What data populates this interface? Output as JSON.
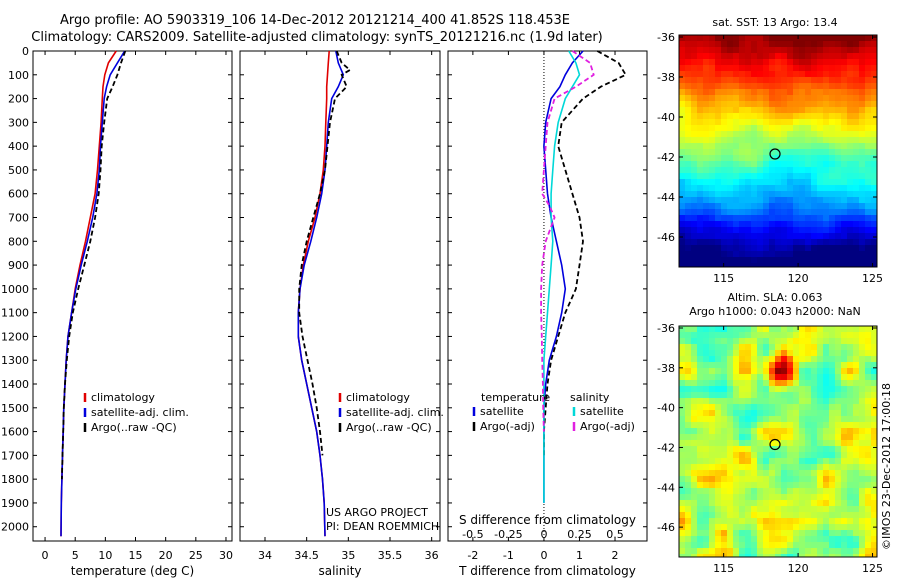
{
  "title_line1": "Argo profile: AO 5903319_106 14-Dec-2012 20121214_400 41.852S 118.453E",
  "title_line2": "Climatology: CARS2009. Satellite-adjusted climatology: synTS_20121216.nc (1.9d later)",
  "colors": {
    "red": "#e00000",
    "blue": "#0000dd",
    "black": "#000000",
    "cyan": "#00d8d8",
    "magenta": "#e020e0"
  },
  "chart_data": [
    {
      "type": "line",
      "xlabel": "temperature (deg C)",
      "ylabel": "",
      "xlim": [
        -2,
        31
      ],
      "ylim": [
        0,
        2060
      ],
      "y_inverted": true,
      "xticks": [
        0,
        5,
        10,
        15,
        20,
        25,
        30
      ],
      "yticks": [
        0,
        100,
        200,
        300,
        400,
        500,
        600,
        700,
        800,
        900,
        1000,
        1100,
        1200,
        1300,
        1400,
        1500,
        1600,
        1700,
        1800,
        1900,
        2000
      ],
      "legend": {
        "position": "lower-center",
        "entries": [
          "climatology",
          "satellite-adj. clim.",
          "Argo(..raw -QC)"
        ]
      },
      "series": [
        {
          "name": "climatology",
          "color": "red",
          "dash": "",
          "x": [
            11.8,
            10.5,
            9.9,
            9.6,
            9.5,
            9.3,
            9.0,
            8.7,
            8.3,
            7.5,
            6.7,
            5.8,
            5.0,
            4.4,
            3.8,
            3.5,
            3.3,
            3.1,
            3.0,
            2.9,
            2.8,
            2.7,
            2.65
          ],
          "y": [
            0,
            50,
            100,
            150,
            200,
            300,
            400,
            500,
            600,
            700,
            800,
            900,
            1000,
            1100,
            1200,
            1300,
            1400,
            1500,
            1600,
            1700,
            1800,
            1900,
            2040
          ]
        },
        {
          "name": "satellite-adj. clim.",
          "color": "blue",
          "dash": "",
          "x": [
            13.2,
            12.0,
            10.8,
            10.2,
            9.8,
            9.5,
            9.2,
            9.0,
            8.6,
            7.9,
            7.0,
            6.0,
            5.1,
            4.4,
            3.8,
            3.5,
            3.3,
            3.1,
            3.0,
            2.9,
            2.8,
            2.7,
            2.65
          ],
          "y": [
            0,
            50,
            100,
            150,
            200,
            300,
            400,
            500,
            600,
            700,
            800,
            900,
            1000,
            1100,
            1200,
            1300,
            1400,
            1500,
            1600,
            1700,
            1800,
            1900,
            2040
          ]
        },
        {
          "name": "Argo(..raw -QC)",
          "color": "black",
          "dash": "5,3",
          "x": [
            13.3,
            12.6,
            12.0,
            11.2,
            10.3,
            9.8,
            9.4,
            9.2,
            8.9,
            8.3,
            7.5,
            6.5,
            5.5,
            4.6,
            4.0,
            3.6,
            3.3,
            3.1,
            3.0,
            2.9,
            2.8
          ],
          "y": [
            0,
            50,
            100,
            150,
            200,
            300,
            400,
            500,
            600,
            700,
            800,
            900,
            1000,
            1100,
            1200,
            1300,
            1400,
            1500,
            1600,
            1700,
            1800
          ]
        }
      ]
    },
    {
      "type": "line",
      "xlabel": "salinity",
      "xlim": [
        33.7,
        36.1
      ],
      "ylim": [
        0,
        2060
      ],
      "y_inverted": true,
      "xticks": [
        34,
        34.5,
        35,
        35.5,
        36
      ],
      "legend": {
        "position": "lower-right",
        "entries": [
          "climatology",
          "satellite-adj. clim.",
          "Argo(..raw -QC)"
        ]
      },
      "annotation": [
        "US ARGO PROJECT",
        "PI: DEAN ROEMMICH"
      ],
      "series": [
        {
          "name": "climatology",
          "color": "red",
          "dash": "",
          "x": [
            34.77,
            34.76,
            34.75,
            34.74,
            34.74,
            34.73,
            34.72,
            34.7,
            34.66,
            34.6,
            34.52,
            34.46,
            34.42,
            34.4,
            34.4,
            34.44,
            34.5,
            34.56,
            34.62,
            34.66,
            34.69,
            34.71,
            34.72
          ],
          "y": [
            0,
            50,
            100,
            150,
            200,
            300,
            400,
            500,
            600,
            700,
            800,
            900,
            1000,
            1100,
            1200,
            1300,
            1400,
            1500,
            1600,
            1700,
            1800,
            1900,
            2040
          ]
        },
        {
          "name": "satellite-adj. clim.",
          "color": "blue",
          "dash": "",
          "x": [
            34.85,
            34.88,
            34.94,
            34.88,
            34.8,
            34.76,
            34.74,
            34.72,
            34.68,
            34.62,
            34.55,
            34.47,
            34.42,
            34.4,
            34.4,
            34.44,
            34.5,
            34.56,
            34.62,
            34.66,
            34.69,
            34.71,
            34.72
          ],
          "y": [
            0,
            50,
            100,
            150,
            200,
            300,
            400,
            500,
            600,
            700,
            800,
            900,
            1000,
            1100,
            1200,
            1300,
            1400,
            1500,
            1600,
            1700,
            1800,
            1900,
            2040
          ]
        },
        {
          "name": "Argo(..raw -QC)",
          "color": "black",
          "dash": "5,3",
          "x": [
            34.86,
            34.92,
            35.02,
            34.92,
            34.98,
            34.84,
            34.78,
            34.75,
            34.72,
            34.66,
            34.58,
            34.5,
            34.44,
            34.41,
            34.41,
            34.45,
            34.51,
            34.57,
            34.62,
            34.66,
            34.69
          ],
          "y": [
            0,
            50,
            80,
            100,
            150,
            200,
            300,
            400,
            500,
            600,
            700,
            800,
            900,
            1000,
            1100,
            1200,
            1300,
            1400,
            1500,
            1600,
            1700
          ]
        }
      ]
    },
    {
      "type": "line",
      "xlabel": "T difference from climatology",
      "xlabel2": "S difference from climatology",
      "xlim": [
        -2.7,
        2.9
      ],
      "ylim": [
        0,
        2060
      ],
      "y_inverted": true,
      "xticks": [
        -2,
        -1,
        0,
        1,
        2
      ],
      "s_xticks": [
        "-0.5",
        "-0.25",
        "0",
        "0.25",
        "0.5"
      ],
      "legend": {
        "position": "lower-center",
        "temp_title": "temperature",
        "sal_title": "salinity",
        "entries": [
          "satellite",
          "Argo(-adj)",
          "satellite",
          "Argo(-adj)"
        ]
      },
      "series": [
        {
          "name": "satellite",
          "color": "blue",
          "dash": "",
          "x": [
            1.1,
            0.8,
            0.6,
            0.45,
            0.2,
            0.05,
            0,
            0.05,
            0.1,
            0.2,
            0.35,
            0.5,
            0.6,
            0.5,
            0.35,
            0.15,
            0.05,
            0,
            0,
            0,
            0,
            0
          ],
          "y": [
            0,
            50,
            100,
            150,
            200,
            300,
            400,
            500,
            600,
            700,
            800,
            900,
            1000,
            1100,
            1200,
            1300,
            1400,
            1500,
            1600,
            1700,
            1800,
            1900
          ]
        },
        {
          "name": "Argo(-adj)",
          "color": "black",
          "dash": "5,3",
          "x": [
            1.5,
            2.1,
            2.3,
            1.6,
            1.1,
            0.5,
            0.4,
            0.6,
            0.8,
            1.0,
            1.1,
            1.0,
            0.9,
            0.6,
            0.4,
            0.2,
            0.1,
            0.05,
            0,
            0
          ],
          "y": [
            0,
            50,
            100,
            150,
            200,
            300,
            400,
            500,
            600,
            700,
            800,
            900,
            1000,
            1100,
            1200,
            1300,
            1400,
            1500,
            1600,
            1700
          ]
        },
        {
          "name": "satellite",
          "color": "cyan",
          "dash": "",
          "x": [
            0.7,
            0.9,
            1.0,
            0.8,
            0.6,
            0.4,
            0.3,
            0.25,
            0.2,
            0.2,
            0.25,
            0.2,
            0.15,
            0.1,
            0.05,
            0,
            0,
            0,
            0,
            0,
            0,
            0
          ],
          "y": [
            0,
            50,
            100,
            150,
            200,
            300,
            400,
            500,
            600,
            700,
            800,
            900,
            1000,
            1100,
            1200,
            1300,
            1400,
            1500,
            1600,
            1700,
            1800,
            1900
          ]
        },
        {
          "name": "Argo(-adj)",
          "color": "magenta",
          "dash": "5,3",
          "x": [
            0.8,
            1.3,
            1.4,
            0.9,
            0.3,
            0.1,
            0.05,
            0,
            -0.05,
            0.15,
            0.3,
            0.05,
            -0.05,
            -0.08,
            -0.08,
            -0.06,
            -0.05,
            -0.03,
            -0.02,
            0
          ],
          "y": [
            0,
            50,
            100,
            150,
            200,
            300,
            400,
            500,
            600,
            650,
            700,
            800,
            900,
            1000,
            1100,
            1200,
            1300,
            1400,
            1500,
            1600
          ]
        }
      ]
    },
    {
      "type": "heatmap",
      "title": "sat. SST: 13 Argo: 13.4",
      "xlim": [
        112,
        125.3
      ],
      "ylim": [
        -47.5,
        -35.9
      ],
      "xticks": [
        115,
        120,
        125
      ],
      "yticks": [
        -36,
        -38,
        -40,
        -42,
        -44,
        -46
      ],
      "marker": {
        "lon": 118.45,
        "lat": -41.85
      }
    },
    {
      "type": "heatmap",
      "title": "Altim. SLA: 0.063",
      "subtitle": "Argo h1000: 0.043 h2000: NaN",
      "xlim": [
        112,
        125.3
      ],
      "ylim": [
        -47.5,
        -35.9
      ],
      "xticks": [
        115,
        120,
        125
      ],
      "yticks": [
        -36,
        -38,
        -40,
        -42,
        -44,
        -46
      ],
      "marker": {
        "lon": 118.45,
        "lat": -41.85
      }
    }
  ],
  "credit": "©IMOS 23-Dec-2012 17:00:18"
}
